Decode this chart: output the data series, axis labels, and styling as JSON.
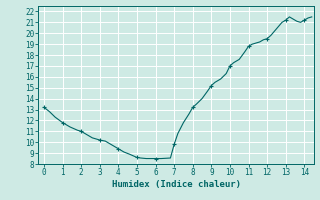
{
  "xlabel": "Humidex (Indice chaleur)",
  "xlim": [
    -0.3,
    14.5
  ],
  "ylim": [
    8,
    22.5
  ],
  "yticks": [
    8,
    9,
    10,
    11,
    12,
    13,
    14,
    15,
    16,
    17,
    18,
    19,
    20,
    21,
    22
  ],
  "xticks": [
    0,
    1,
    2,
    3,
    4,
    5,
    6,
    7,
    8,
    9,
    10,
    11,
    12,
    13,
    14
  ],
  "bg_color": "#ceeae4",
  "line_color": "#006666",
  "grid_color": "#ffffff",
  "x": [
    0.0,
    0.3,
    0.6,
    1.0,
    1.4,
    1.8,
    2.0,
    2.3,
    2.6,
    3.0,
    3.3,
    3.6,
    4.0,
    4.3,
    4.6,
    5.0,
    5.2,
    5.5,
    5.8,
    6.0,
    6.3,
    6.5,
    6.8,
    7.0,
    7.2,
    7.5,
    7.8,
    8.0,
    8.2,
    8.5,
    8.8,
    9.0,
    9.2,
    9.5,
    9.8,
    10.0,
    10.2,
    10.5,
    10.8,
    11.0,
    11.2,
    11.4,
    11.6,
    11.8,
    12.0,
    12.2,
    12.4,
    12.6,
    12.8,
    13.0,
    13.2,
    13.4,
    13.6,
    13.8,
    14.0,
    14.2,
    14.4
  ],
  "y": [
    13.2,
    12.8,
    12.3,
    11.8,
    11.4,
    11.1,
    11.0,
    10.7,
    10.4,
    10.2,
    10.1,
    9.8,
    9.4,
    9.1,
    8.9,
    8.6,
    8.55,
    8.5,
    8.5,
    8.5,
    8.5,
    8.52,
    8.55,
    9.8,
    10.8,
    11.8,
    12.6,
    13.2,
    13.5,
    14.0,
    14.7,
    15.2,
    15.5,
    15.8,
    16.3,
    17.0,
    17.3,
    17.6,
    18.3,
    18.8,
    19.0,
    19.1,
    19.2,
    19.4,
    19.5,
    19.8,
    20.2,
    20.6,
    21.0,
    21.2,
    21.5,
    21.3,
    21.1,
    21.0,
    21.2,
    21.4,
    21.5
  ],
  "marker_x": [
    0,
    1,
    2,
    3,
    4,
    5,
    6,
    7,
    8,
    9,
    10,
    11,
    12,
    13,
    14
  ],
  "marker_y": [
    13.2,
    11.8,
    11.0,
    10.2,
    9.4,
    8.6,
    8.5,
    9.8,
    13.2,
    15.2,
    17.0,
    18.8,
    19.5,
    21.2,
    21.2
  ]
}
